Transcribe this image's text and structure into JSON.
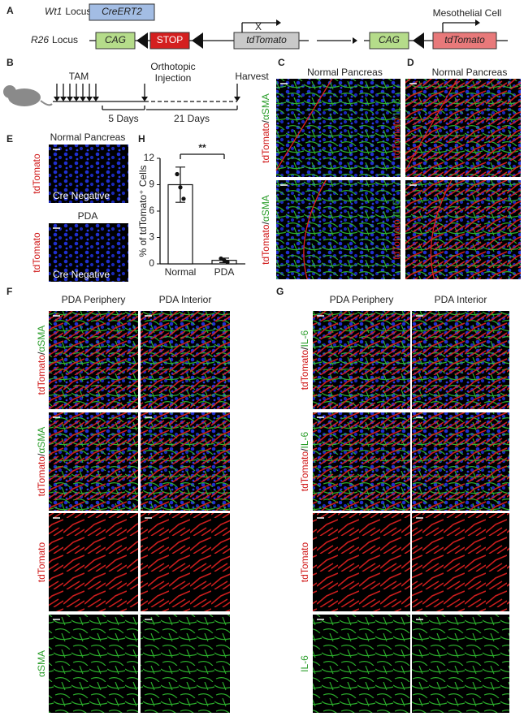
{
  "panel_a": {
    "label": "A",
    "wt1_locus": {
      "gene": "Wt1",
      "label": "Locus"
    },
    "cre": "CreERT2",
    "r26_locus": {
      "gene": "R26",
      "label": "Locus"
    },
    "elements": [
      "CAG",
      "STOP",
      "tdTomato",
      "CAG",
      "tdTomato"
    ],
    "blocked_mark": "X",
    "mesothelial_cell": "Mesothelial Cell"
  },
  "panel_b": {
    "label": "B",
    "tam": "TAM",
    "injection": [
      "Orthotopic",
      "Injection"
    ],
    "harvest": "Harvest",
    "intervals": [
      "5 Days",
      "21 Days"
    ]
  },
  "panel_c": {
    "label": "C",
    "title": "Normal Pancreas",
    "row_labels": [
      {
        "red": "tdTomato",
        "sep": "/",
        "green": "αSMA"
      },
      {
        "red": "tdTomato",
        "sep": "/",
        "green": "αSMA"
      }
    ]
  },
  "panel_d": {
    "label": "D",
    "title": "Normal Pancreas",
    "row_labels": [
      {
        "red": "tdTomato",
        "sep": "/",
        "green": "IL-6"
      },
      {
        "red": "tdTomato",
        "sep": "/",
        "green": "IL-6"
      }
    ]
  },
  "panel_e": {
    "label": "E",
    "titles": [
      "Normal Pancreas",
      "PDA"
    ],
    "row_label": "tdTomato",
    "overlay": "Cre Negative"
  },
  "panel_h": {
    "label": "H",
    "chart": {
      "type": "bar",
      "ylabel": "% of tdTomato⁺ Cells",
      "categories": [
        "Normal",
        "PDA"
      ],
      "values": [
        9,
        0.4
      ],
      "errors": [
        2,
        0.25
      ],
      "points": [
        [
          10.2,
          8.7,
          7.4
        ],
        [
          0.6,
          0.4,
          0.2
        ]
      ],
      "ylim": [
        0,
        12
      ],
      "yticks": [
        0,
        3,
        6,
        9,
        12
      ],
      "significance": "**",
      "color": "#ffffff"
    }
  },
  "panel_f": {
    "label": "F",
    "columns": [
      "PDA Periphery",
      "PDA Interior"
    ],
    "row_labels": [
      {
        "red": "tdTomato",
        "sep": "/",
        "green": "αSMA"
      },
      {
        "red": "tdTomato",
        "sep": "/",
        "green": "αSMA"
      },
      {
        "red": "tdTomato"
      },
      {
        "green": "αSMA"
      }
    ]
  },
  "panel_g": {
    "label": "G",
    "columns": [
      "PDA Periphery",
      "PDA Interior"
    ],
    "row_labels": [
      {
        "red": "tdTomato",
        "sep": "/",
        "green": "IL-6"
      },
      {
        "red": "tdTomato",
        "sep": "/",
        "green": "IL-6"
      },
      {
        "red": "tdTomato"
      },
      {
        "green": "IL-6"
      }
    ]
  }
}
